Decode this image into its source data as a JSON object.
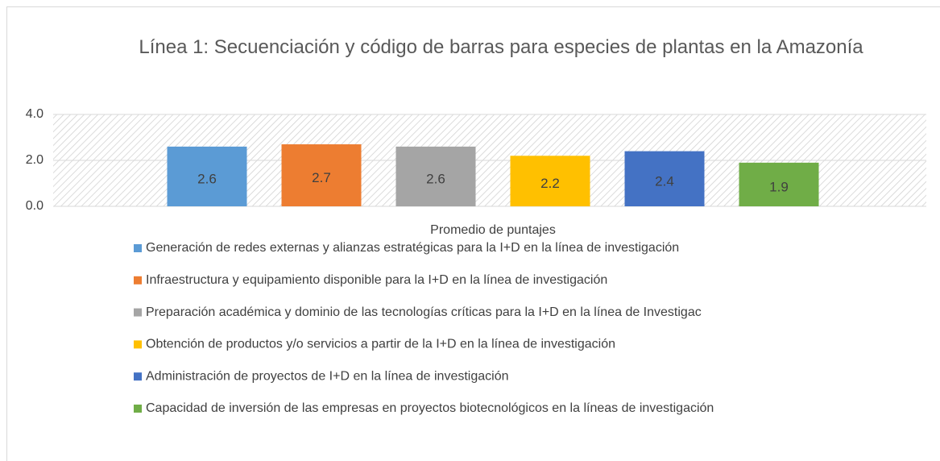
{
  "chart_data": {
    "type": "bar",
    "title": "Línea 1: Secuenciación y código de barras para especies de plantas en la Amazonía",
    "categories": [
      "Promedio de puntajes"
    ],
    "series": [
      {
        "name": "Generación de redes externas y alianzas estratégicas para la I+D en la línea de investigación",
        "color": "#5b9bd5",
        "values": [
          2.6
        ]
      },
      {
        "name": "Infraestructura y equipamiento disponible para la I+D en la línea de investigación",
        "color": "#ed7d31",
        "values": [
          2.7
        ]
      },
      {
        "name": "Preparación académica y dominio de las tecnologías críticas para la I+D en la línea de Investigac",
        "color": "#a5a5a5",
        "values": [
          2.6
        ]
      },
      {
        "name": "Obtención de productos y/o servicios a partir de la I+D en la línea de investigación",
        "color": "#ffc000",
        "values": [
          2.2
        ]
      },
      {
        "name": "Administración de proyectos de I+D en la línea de investigación",
        "color": "#4472c4",
        "values": [
          2.4
        ]
      },
      {
        "name": "Capacidad de inversión de las empresas en proyectos biotecnológicos en la líneas de investigación",
        "color": "#70ad47",
        "values": [
          1.9
        ]
      }
    ],
    "ylim": [
      0,
      4
    ],
    "yticks": [
      {
        "value": 0,
        "label": "0.0"
      },
      {
        "value": 2,
        "label": "2.0"
      },
      {
        "value": 4,
        "label": "4.0"
      }
    ],
    "grid": true,
    "legend": "bottom"
  }
}
